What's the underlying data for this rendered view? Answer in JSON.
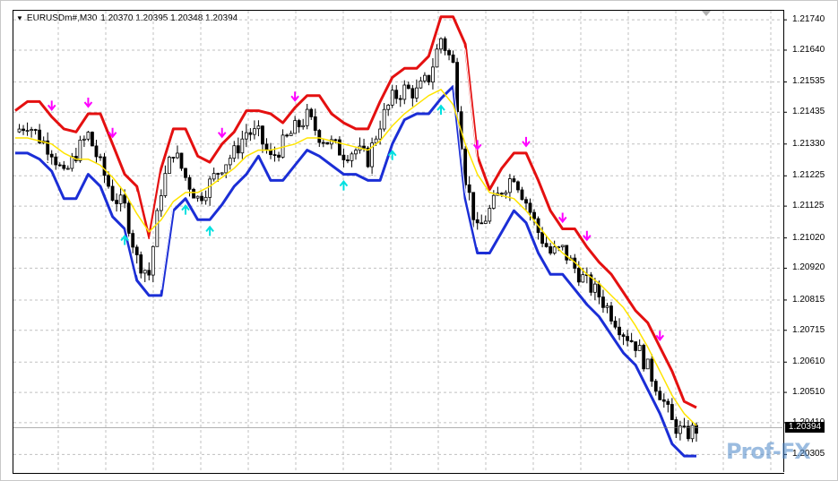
{
  "header": {
    "symbol": "EURUSDm#,M30",
    "ohlc": "1.20370 1.20395 1.20348 1.20394"
  },
  "current_price": "1.20394",
  "watermark": "Prof-FX",
  "colors": {
    "upper_band": "#e41010",
    "lower_band": "#1b2ed6",
    "ma": "#ffe400",
    "arrow_down": "#ff00ff",
    "arrow_up": "#00e0e0",
    "candle": "#000000",
    "grid": "#c0c0c0"
  },
  "icons": {
    "menu": "triangle-down-icon",
    "sell": "arrow-down-icon",
    "buy": "arrow-up-icon"
  },
  "chart_data": {
    "type": "candlestick",
    "y_ticks": [
      "1.21740",
      "1.21640",
      "1.21535",
      "1.21435",
      "1.21330",
      "1.21225",
      "1.21125",
      "1.21020",
      "1.20920",
      "1.20815",
      "1.20715",
      "1.20610",
      "1.20510",
      "1.20410",
      "1.20305"
    ],
    "ylim": [
      1.2025,
      1.2177
    ],
    "close_series": [
      1.2137,
      1.214,
      1.2135,
      1.2131,
      1.2122,
      1.213,
      1.2136,
      1.2126,
      1.2116,
      1.2112,
      1.2095,
      1.209,
      1.2118,
      1.2131,
      1.2122,
      1.2115,
      1.212,
      1.2126,
      1.213,
      1.2137,
      1.2136,
      1.2128,
      1.2133,
      1.2138,
      1.2142,
      1.2136,
      1.2133,
      1.213,
      1.2131,
      1.2128,
      1.214,
      1.2148,
      1.2151,
      1.215,
      1.2155,
      1.2168,
      1.2159,
      1.2122,
      1.2104,
      1.2111,
      1.2118,
      1.2123,
      1.2114,
      1.2104,
      1.2097,
      1.2098,
      1.2092,
      1.2087,
      1.2083,
      1.2077,
      1.2071,
      1.2067,
      1.2059,
      1.2051,
      1.2041,
      1.2037,
      1.2039
    ],
    "ma_series": [
      1.2135,
      1.2135,
      1.2134,
      1.2133,
      1.213,
      1.2128,
      1.2128,
      1.2126,
      1.2122,
      1.2117,
      1.211,
      1.2104,
      1.2108,
      1.2114,
      1.2117,
      1.2117,
      1.2119,
      1.2122,
      1.2125,
      1.2129,
      1.2131,
      1.2131,
      1.2132,
      1.2133,
      1.2135,
      1.2135,
      1.2134,
      1.2133,
      1.2132,
      1.2131,
      1.2134,
      1.2139,
      1.2143,
      1.2146,
      1.2149,
      1.2151,
      1.2146,
      1.2133,
      1.2123,
      1.2117,
      1.2116,
      1.2115,
      1.2111,
      1.2106,
      1.2101,
      1.2097,
      1.2094,
      1.209,
      1.2087,
      1.2083,
      1.2079,
      1.2073,
      1.2066,
      1.2058,
      1.205,
      1.2044,
      1.204
    ],
    "band_offset": 0.0007,
    "sell_signals": [
      3,
      6,
      8,
      17,
      23,
      38,
      42,
      45,
      47,
      53
    ],
    "buy_signals": [
      9,
      14,
      16,
      27,
      31,
      35
    ]
  }
}
